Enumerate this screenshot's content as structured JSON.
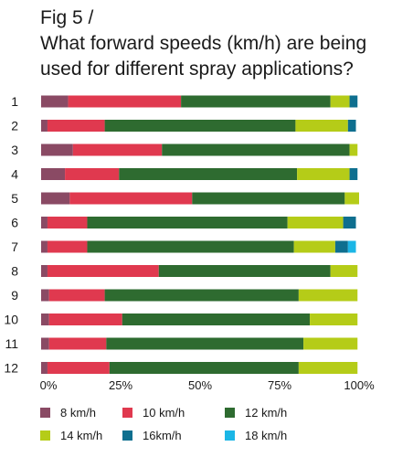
{
  "title_line1": "Fig 5 /",
  "title_line2": "What forward speeds (km/h) are being",
  "title_line3": "used for different spray applications?",
  "chart_data": {
    "type": "bar",
    "orientation": "horizontal",
    "stacked": true,
    "categories": [
      "1",
      "2",
      "3",
      "4",
      "5",
      "6",
      "7",
      "8",
      "9",
      "10",
      "11",
      "12"
    ],
    "xlim": [
      0,
      100
    ],
    "xticks": [
      "0%",
      "25%",
      "50%",
      "75%",
      "100%"
    ],
    "series": [
      {
        "name": "8 km/h",
        "color": "#8a4a64",
        "values": [
          8.5,
          2,
          10,
          7.5,
          9,
          2,
          2,
          2,
          2.5,
          2.5,
          2.5,
          2
        ]
      },
      {
        "name": "10 km/h",
        "color": "#e0394f",
        "values": [
          35.5,
          18,
          28,
          17,
          38.5,
          12.5,
          12.5,
          35,
          17.5,
          23,
          18,
          19.5
        ]
      },
      {
        "name": "12 km/h",
        "color": "#2e6b30",
        "values": [
          47,
          60,
          59,
          56,
          48,
          63,
          65,
          54,
          61,
          59,
          62,
          59.5
        ]
      },
      {
        "name": "14 km/h",
        "color": "#b5cc18",
        "values": [
          6,
          16.5,
          2.5,
          16.5,
          4.5,
          17.5,
          13,
          8.5,
          18.5,
          15,
          17,
          18.5
        ]
      },
      {
        "name": "16km/h",
        "color": "#0e6f8f",
        "values": [
          2.5,
          2.5,
          0,
          2.5,
          0,
          4,
          4,
          0,
          0,
          0,
          0,
          0
        ]
      },
      {
        "name": "18 km/h",
        "color": "#1bb6e6",
        "values": [
          0,
          0,
          0,
          0,
          0,
          0,
          2.5,
          0,
          0,
          0,
          0,
          0
        ]
      }
    ],
    "grid": false,
    "legend_position": "bottom"
  }
}
